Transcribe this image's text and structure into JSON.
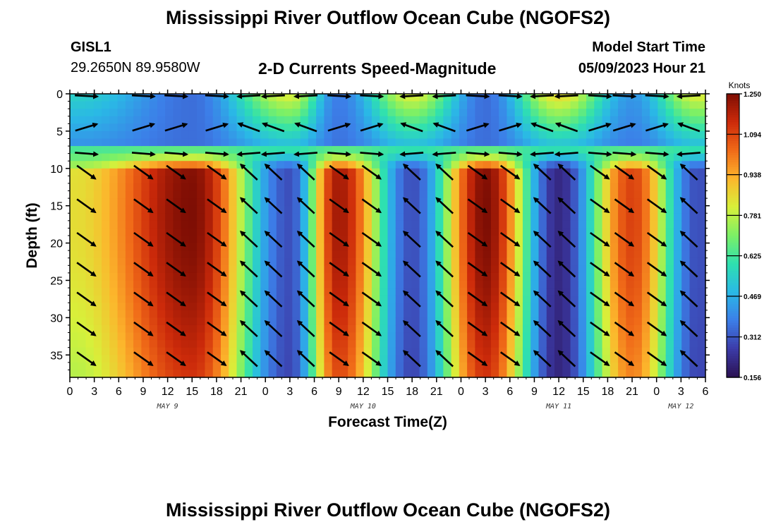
{
  "page_title": "Mississippi River Outflow Ocean Cube (NGOFS2)",
  "page_title_repeat": "Mississippi River Outflow Ocean Cube (NGOFS2)",
  "station": {
    "id": "GISL1",
    "coords": "29.2650N  89.9580W"
  },
  "model": {
    "label": "Model Start Time",
    "value": "05/09/2023 Hour 21"
  },
  "chart_data": {
    "type": "heatmap",
    "subtitle": "2-D Currents Speed-Magnitude",
    "xlabel": "Forecast Time(Z)",
    "ylabel": "Depth (ft)",
    "x_tick_labels": [
      "0",
      "3",
      "6",
      "9",
      "12",
      "15",
      "18",
      "21",
      "0",
      "3",
      "6",
      "9",
      "12",
      "15",
      "18",
      "21",
      "0",
      "3",
      "6",
      "9",
      "12",
      "15",
      "18",
      "21",
      "0",
      "3",
      "6"
    ],
    "x_range_hours": [
      0,
      78
    ],
    "date_labels": [
      {
        "label": "MAY 9",
        "hour": 12
      },
      {
        "label": "MAY 10",
        "hour": 36
      },
      {
        "label": "MAY 11",
        "hour": 60
      },
      {
        "label": "MAY 12",
        "hour": 75
      }
    ],
    "y_ticks": [
      0,
      5,
      10,
      15,
      20,
      25,
      30,
      35
    ],
    "y_range_ft": [
      0,
      38
    ],
    "y_inverted": true,
    "colorbar": {
      "label": "Knots",
      "min": 0.156,
      "max": 1.25,
      "ticks": [
        "1.250",
        "1.094",
        "0.938",
        "0.781",
        "0.625",
        "0.469",
        "0.312",
        "0.156"
      ],
      "colors": [
        "#2b1152",
        "#3c3ba8",
        "#3c7ee8",
        "#2ab8e6",
        "#2ee0b0",
        "#7cf066",
        "#d8f03a",
        "#fcb62c",
        "#f06a18",
        "#cc2a0a",
        "#7e0e04"
      ]
    },
    "speed_centers": [
      {
        "hour": 0.5,
        "speed": 0.85
      },
      {
        "hour": 15,
        "speed": 1.25
      },
      {
        "hour": 27,
        "speed": 0.3
      },
      {
        "hour": 33,
        "speed": 1.2
      },
      {
        "hour": 42,
        "speed": 0.3
      },
      {
        "hour": 51,
        "speed": 1.25
      },
      {
        "hour": 60,
        "speed": 0.22
      },
      {
        "hour": 69,
        "speed": 1.1
      },
      {
        "hour": 77,
        "speed": 0.3
      }
    ],
    "vector_hours": [
      2,
      9,
      13,
      18,
      22,
      25,
      29,
      33,
      37,
      42,
      46,
      50,
      54,
      58,
      61,
      65,
      68,
      72,
      76
    ],
    "vector_depths_ft": [
      10.5,
      15,
      19.5,
      23.5,
      27.5,
      31.5,
      35.5
    ],
    "surface_rows_ft": [
      0,
      4.5,
      8
    ]
  }
}
